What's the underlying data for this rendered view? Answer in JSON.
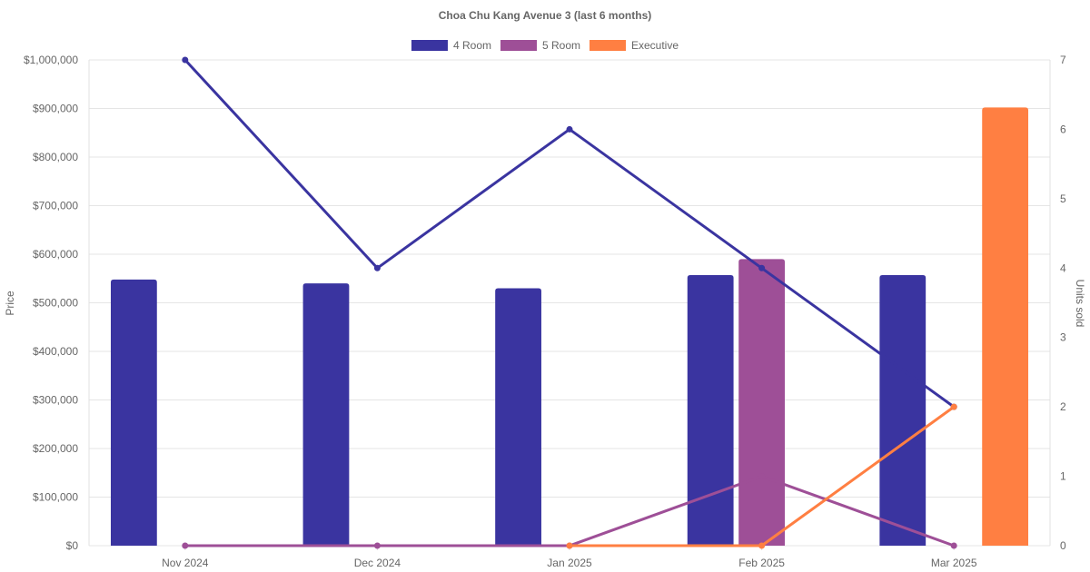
{
  "chart_data": {
    "type": "bar",
    "title": "Choa Chu Kang Avenue 3 (last 6 months)",
    "categories": [
      "Nov 2024",
      "Dec 2024",
      "Jan 2025",
      "Feb 2025",
      "Mar 2025"
    ],
    "y_left": {
      "label": "Price",
      "range": [
        0,
        1000000
      ],
      "ticks": [
        0,
        100000,
        200000,
        300000,
        400000,
        500000,
        600000,
        700000,
        800000,
        900000,
        1000000
      ],
      "tick_labels": [
        "$0",
        "$100,000",
        "$200,000",
        "$300,000",
        "$400,000",
        "$500,000",
        "$600,000",
        "$700,000",
        "$800,000",
        "$900,000",
        "$1,000,000"
      ]
    },
    "y_right": {
      "label": "Units sold",
      "range": [
        0,
        7
      ],
      "ticks": [
        0,
        1,
        2,
        3,
        4,
        5,
        6,
        7
      ],
      "tick_labels": [
        "0",
        "1",
        "2",
        "3",
        "4",
        "5",
        "6",
        "7"
      ]
    },
    "grid": true,
    "legend_position": "top",
    "series": [
      {
        "name": "4 Room",
        "color": "#3a34a0",
        "price": [
          548000,
          540000,
          530000,
          557000,
          557000
        ],
        "units": [
          7,
          4,
          6,
          4,
          2
        ]
      },
      {
        "name": "5 Room",
        "color": "#9e4f97",
        "price": [
          null,
          null,
          null,
          590000,
          null
        ],
        "units": [
          0,
          0,
          0,
          1,
          0
        ]
      },
      {
        "name": "Executive",
        "color": "#ff7f42",
        "price": [
          null,
          null,
          null,
          null,
          902000
        ],
        "units": [
          null,
          null,
          0,
          0,
          2
        ]
      }
    ]
  }
}
